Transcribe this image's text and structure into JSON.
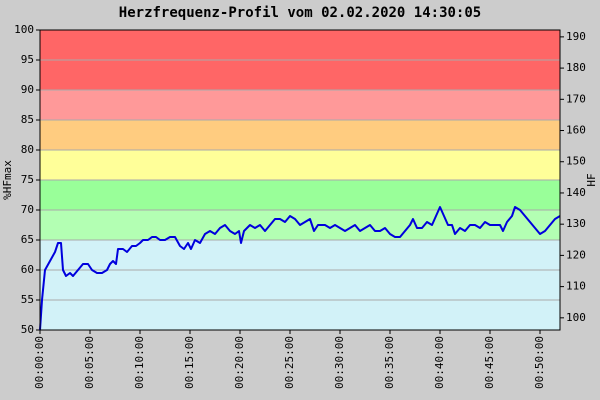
{
  "chart_data": {
    "type": "line",
    "title": "Herzfrequenz-Profil vom 02.02.2020 14:30:05",
    "ylabel": "%HFmax",
    "y2label": "HF",
    "color": "#0000dd",
    "grid": true,
    "xlim": [
      0,
      52
    ],
    "xticks": [
      {
        "value": 0,
        "label": "00:00:00"
      },
      {
        "value": 5,
        "label": "00:05:00"
      },
      {
        "value": 10,
        "label": "00:10:00"
      },
      {
        "value": 15,
        "label": "00:15:00"
      },
      {
        "value": 20,
        "label": "00:20:00"
      },
      {
        "value": 25,
        "label": "00:25:00"
      },
      {
        "value": 30,
        "label": "00:30:00"
      },
      {
        "value": 35,
        "label": "00:35:00"
      },
      {
        "value": 40,
        "label": "00:40:00"
      },
      {
        "value": 45,
        "label": "00:45:00"
      },
      {
        "value": 50,
        "label": "00:50:00"
      }
    ],
    "ylim": [
      50,
      100
    ],
    "yticks": [
      50,
      55,
      60,
      65,
      70,
      75,
      80,
      85,
      90,
      95,
      100
    ],
    "y2lim": [
      96.1,
      192.2
    ],
    "y2ticks": [
      100,
      110,
      120,
      130,
      140,
      150,
      160,
      170,
      180,
      190
    ],
    "zones": [
      {
        "from": 90,
        "to": 100,
        "color": "#ff6666"
      },
      {
        "from": 85,
        "to": 90,
        "color": "#ff9999"
      },
      {
        "from": 80,
        "to": 85,
        "color": "#ffcc80"
      },
      {
        "from": 75,
        "to": 80,
        "color": "#ffff99"
      },
      {
        "from": 70,
        "to": 75,
        "color": "#99ff99"
      },
      {
        "from": 65,
        "to": 70,
        "color": "#b3ffb3"
      },
      {
        "from": 50,
        "to": 65,
        "color": "#d2f2f8"
      }
    ],
    "x": [
      0,
      0.2,
      0.5,
      1,
      1.5,
      1.8,
      2.1,
      2.3,
      2.6,
      3,
      3.3,
      3.8,
      4.3,
      4.8,
      5.2,
      5.7,
      6.2,
      6.7,
      7,
      7.3,
      7.6,
      7.8,
      8.3,
      8.7,
      9.2,
      9.6,
      10,
      10.3,
      10.8,
      11.2,
      11.6,
      12,
      12.5,
      13,
      13.5,
      14,
      14.4,
      14.8,
      15.1,
      15.5,
      16,
      16.5,
      17,
      17.5,
      18,
      18.5,
      19,
      19.5,
      19.9,
      20.1,
      20.4,
      21,
      21.5,
      22,
      22.5,
      23,
      23.5,
      24,
      24.5,
      25,
      25.5,
      26,
      26.5,
      27,
      27.4,
      27.8,
      28.5,
      29,
      29.5,
      30,
      30.5,
      31,
      31.5,
      32,
      32.5,
      33,
      33.5,
      34,
      34.5,
      35,
      35.5,
      36,
      36.5,
      37,
      37.3,
      37.7,
      38.2,
      38.7,
      39.2,
      39.6,
      40,
      40.4,
      40.8,
      41.2,
      41.5,
      42,
      42.5,
      43,
      43.5,
      44,
      44.5,
      45,
      45.5,
      46,
      46.3,
      46.7,
      47.2,
      47.5,
      48,
      48.5,
      49,
      49.5,
      50,
      50.5,
      51,
      51.5,
      52
    ],
    "values": [
      50,
      55,
      60,
      61.5,
      63,
      64.5,
      64.5,
      60,
      59,
      59.5,
      59,
      60,
      61,
      61,
      60,
      59.5,
      59.5,
      60,
      61,
      61.5,
      61,
      63.5,
      63.5,
      63,
      64,
      64,
      64.5,
      65,
      65,
      65.5,
      65.5,
      65,
      65,
      65.5,
      65.5,
      64,
      63.5,
      64.5,
      63.5,
      65,
      64.5,
      66,
      66.5,
      66,
      67,
      67.5,
      66.5,
      66,
      66.5,
      64.5,
      66.5,
      67.5,
      67,
      67.5,
      66.5,
      67.5,
      68.5,
      68.5,
      68,
      69,
      68.5,
      67.5,
      68,
      68.5,
      66.5,
      67.5,
      67.5,
      67,
      67.5,
      67,
      66.5,
      67,
      67.5,
      66.5,
      67,
      67.5,
      66.5,
      66.5,
      67,
      66,
      65.5,
      65.5,
      66.5,
      67.5,
      68.5,
      67,
      67,
      68,
      67.5,
      69,
      70.5,
      69,
      67.5,
      67.5,
      66,
      67,
      66.5,
      67.5,
      67.5,
      67,
      68,
      67.5,
      67.5,
      67.5,
      66.5,
      68,
      69,
      70.5,
      70,
      69,
      68,
      67,
      66,
      66.5,
      67.5,
      68.5,
      69
    ]
  }
}
